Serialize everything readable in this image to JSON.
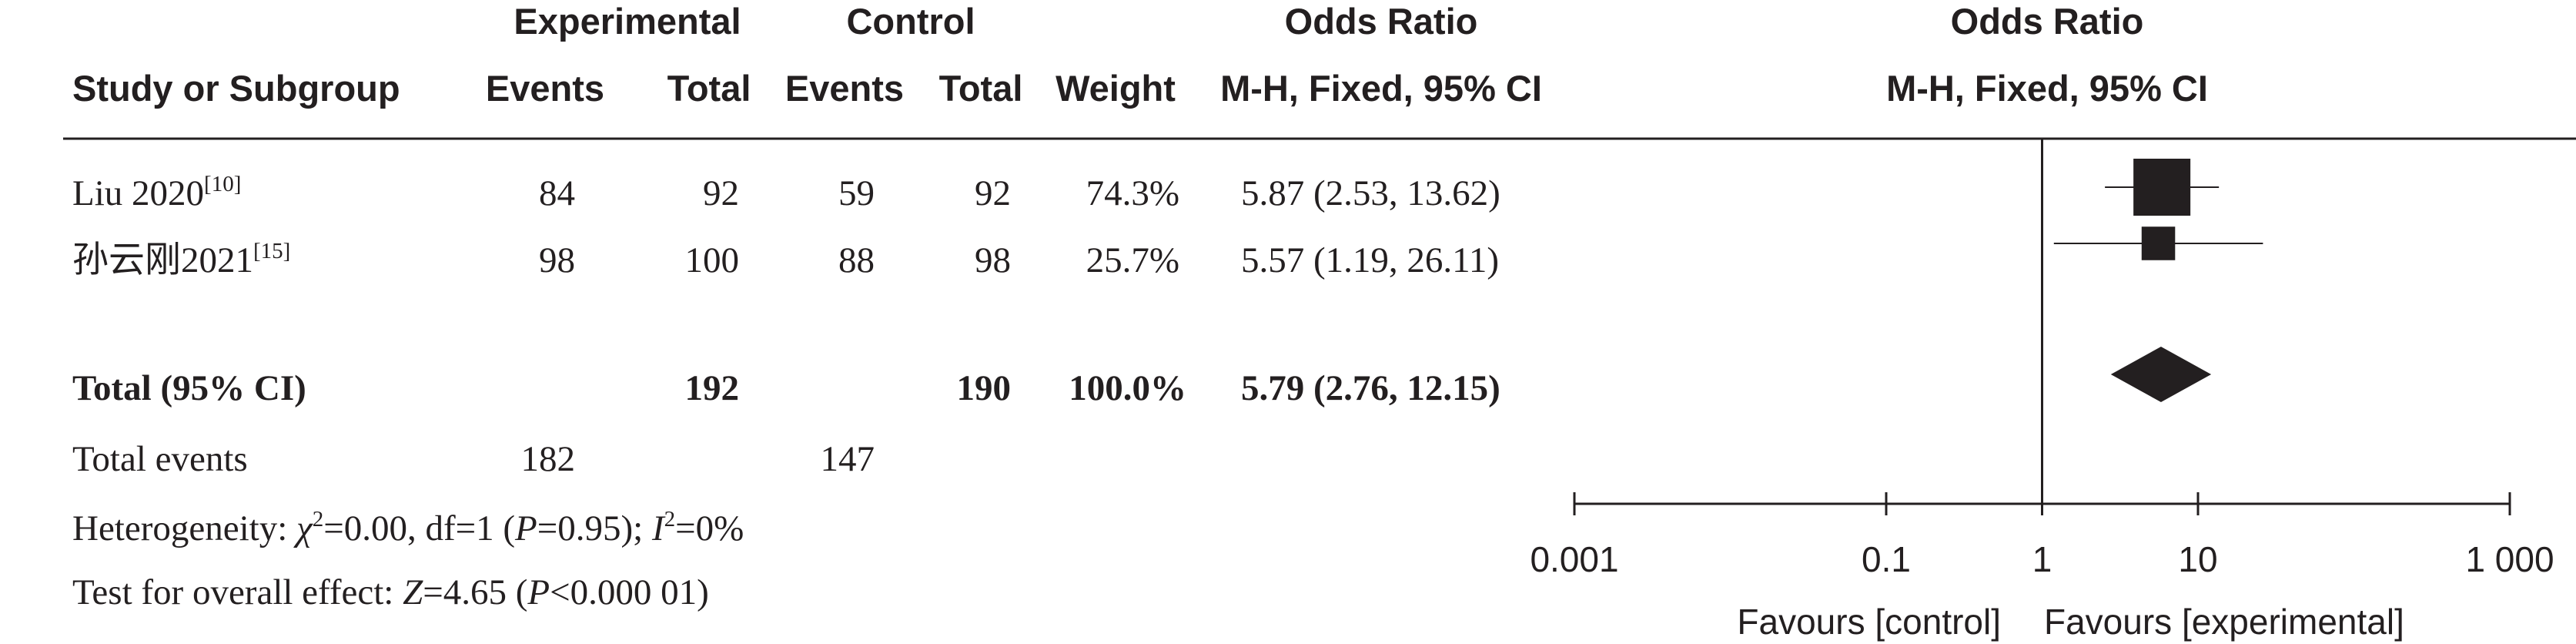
{
  "header": {
    "group_experimental": "Experimental",
    "group_control": "Control",
    "odds_ratio": "Odds Ratio",
    "plot_odds_ratio": "Odds Ratio",
    "study_or_subgroup": "Study or Subgroup",
    "events_exp": "Events",
    "total_exp": "Total",
    "events_ctrl": "Events",
    "total_ctrl": "Total",
    "weight": "Weight",
    "method": "M-H, Fixed, 95% CI",
    "plot_method": "M-H, Fixed, 95% CI"
  },
  "studies": [
    {
      "name": "Liu 2020",
      "ref": "[10]",
      "exp_events": "84",
      "exp_total": "92",
      "ctrl_events": "59",
      "ctrl_total": "92",
      "weight": "74.3%",
      "ci_text": "5.87 (2.53, 13.62)"
    },
    {
      "name": "孙云刚2021",
      "ref": "[15]",
      "exp_events": "98",
      "exp_total": "100",
      "ctrl_events": "88",
      "ctrl_total": "98",
      "weight": "25.7%",
      "ci_text": "5.57 (1.19, 26.11)"
    }
  ],
  "total": {
    "label": "Total (95% CI)",
    "exp_total": "192",
    "ctrl_total": "190",
    "weight": "100.0%",
    "ci_text": "5.79 (2.76, 12.15)"
  },
  "total_events": {
    "label": "Total events",
    "exp": "182",
    "ctrl": "147"
  },
  "heterogeneity": {
    "prefix": "Heterogeneity: ",
    "chi": "χ",
    "chi_sup": "2",
    "chi_val": "=0.00, df=1 (",
    "p": "P",
    "p_val": "=0.95); ",
    "i": "I",
    "i_sup": "2",
    "i_val": "=0%"
  },
  "overall_effect": {
    "prefix": "Test for overall effect: ",
    "z": "Z",
    "z_val": "=4.65 (",
    "p": "P",
    "p_val": "<0.000 01)"
  },
  "axis": {
    "ticks": [
      0.001,
      0.1,
      1,
      10,
      1000
    ],
    "tick_labels": [
      "0.001",
      "0.1",
      "1",
      "10",
      "1 000"
    ],
    "favours_left": "Favours [control]",
    "favours_right": "Favours [experimental]"
  },
  "chart_data": {
    "type": "forest",
    "scale": "log",
    "xlim": [
      0.001,
      1000
    ],
    "null_line": 1,
    "points": [
      {
        "study": "Liu 2020",
        "or": 5.87,
        "ci": [
          2.53,
          13.62
        ],
        "weight": 74.3
      },
      {
        "study": "孙云刚2021",
        "or": 5.57,
        "ci": [
          1.19,
          26.11
        ],
        "weight": 25.7
      }
    ],
    "pooled": {
      "or": 5.79,
      "ci": [
        2.76,
        12.15
      ]
    }
  }
}
